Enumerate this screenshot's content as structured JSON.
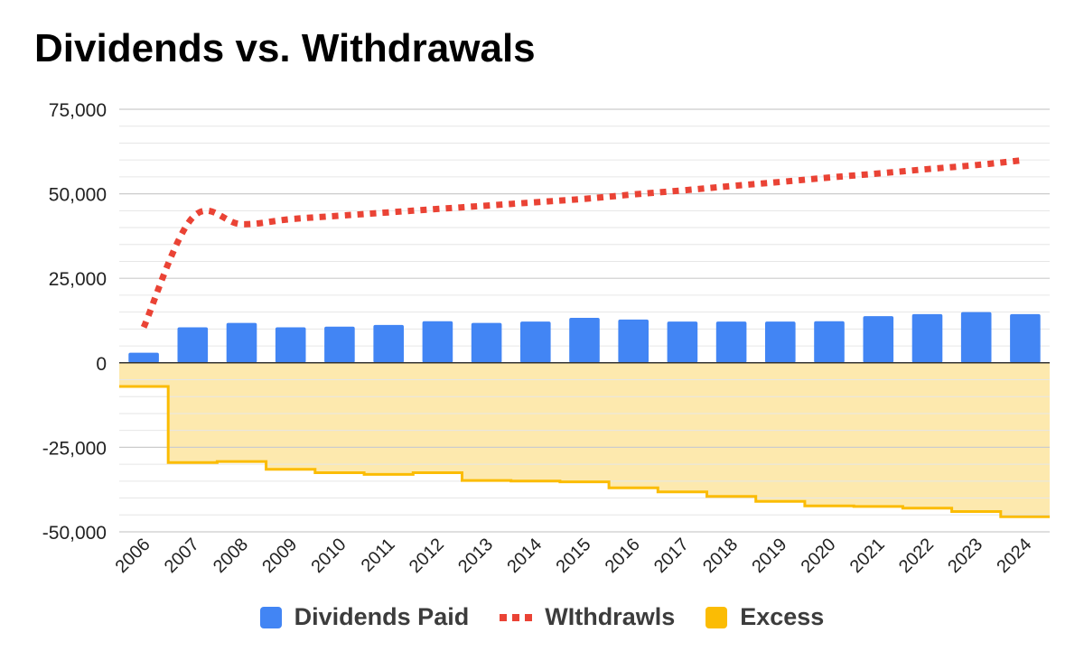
{
  "chart_data": {
    "type": "bar",
    "title": "Dividends vs. Withdrawals",
    "xlabel": "",
    "ylabel": "",
    "ylim": [
      -50000,
      75000
    ],
    "y_ticks": [
      75000,
      50000,
      25000,
      0,
      -25000,
      -50000
    ],
    "y_tick_labels": [
      "75,000",
      "50,000",
      "25,000",
      "0",
      "-25,000",
      "-50,000"
    ],
    "categories": [
      "2006",
      "2007",
      "2008",
      "2009",
      "2010",
      "2011",
      "2012",
      "2013",
      "2014",
      "2015",
      "2016",
      "2017",
      "2018",
      "2019",
      "2020",
      "2021",
      "2022",
      "2023",
      "2024"
    ],
    "grid": true,
    "legend_position": "bottom",
    "series": [
      {
        "name": "Dividends Paid",
        "type": "bar",
        "color": "#4285f4",
        "values": [
          3000,
          10500,
          11800,
          10500,
          10700,
          11200,
          12300,
          11800,
          12200,
          13300,
          12800,
          12200,
          12200,
          12200,
          12300,
          13800,
          14400,
          15000,
          14400
        ]
      },
      {
        "name": "WIthdrawls",
        "type": "line",
        "style": "dotted",
        "color": "#ea4335",
        "values": [
          10500,
          43000,
          41000,
          42500,
          43500,
          44500,
          45500,
          46500,
          47500,
          48500,
          49800,
          51000,
          52300,
          53500,
          54800,
          56000,
          57300,
          58500,
          60000
        ]
      },
      {
        "name": "Excess",
        "type": "stepped-area",
        "color": "#fbbc04",
        "fill": "#fde9ae",
        "values": [
          -7000,
          -29500,
          -29200,
          -31500,
          -32500,
          -33000,
          -32500,
          -34800,
          -35000,
          -35200,
          -37000,
          -38200,
          -39500,
          -41000,
          -42300,
          -42500,
          -43000,
          -44000,
          -45500
        ]
      }
    ]
  },
  "legend": {
    "items": [
      {
        "label": "Dividends Paid",
        "color": "#4285f4"
      },
      {
        "label": "WIthdrawls",
        "color": "#ea4335"
      },
      {
        "label": "Excess",
        "color": "#fbbc04"
      }
    ]
  }
}
